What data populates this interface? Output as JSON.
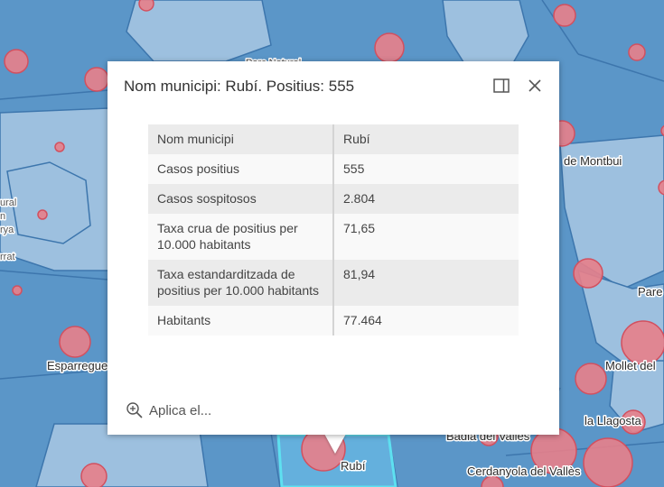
{
  "map": {
    "labels": [
      "Parc Natural",
      "de Montbui",
      "ural",
      "n",
      "rya",
      "rrat",
      "Pare",
      "Esparreguer",
      "Mollet del",
      "la Llagosta",
      "Badia del Vallès",
      "Rubí",
      "Cerdanyola del Vallès"
    ],
    "colors": {
      "muni_fill": "#5b96c8",
      "muni_fill_light": "#9dc0df",
      "muni_border": "#3d76ad",
      "selected_outline": "#5ee0f0",
      "circle_fill": "#e8808a",
      "circle_stroke": "#d2505f"
    }
  },
  "popup": {
    "title": "Nom municipi: Rubí. Positius: 555",
    "dock_icon": "dock-side-icon",
    "close_icon": "close-icon",
    "rows": [
      {
        "key": "Nom municipi",
        "value": "Rubí"
      },
      {
        "key": "Casos positius",
        "value": "555"
      },
      {
        "key": "Casos sospitosos",
        "value": "2.804"
      },
      {
        "key": "Taxa crua de positius per 10.000 habitants",
        "value": "71,65"
      },
      {
        "key": "Taxa estandarditzada de positius per 10.000 habitants",
        "value": "81,94"
      },
      {
        "key": "Habitants",
        "value": "77.464"
      }
    ],
    "action": {
      "icon": "zoom-in-icon",
      "label": "Aplica el..."
    }
  }
}
